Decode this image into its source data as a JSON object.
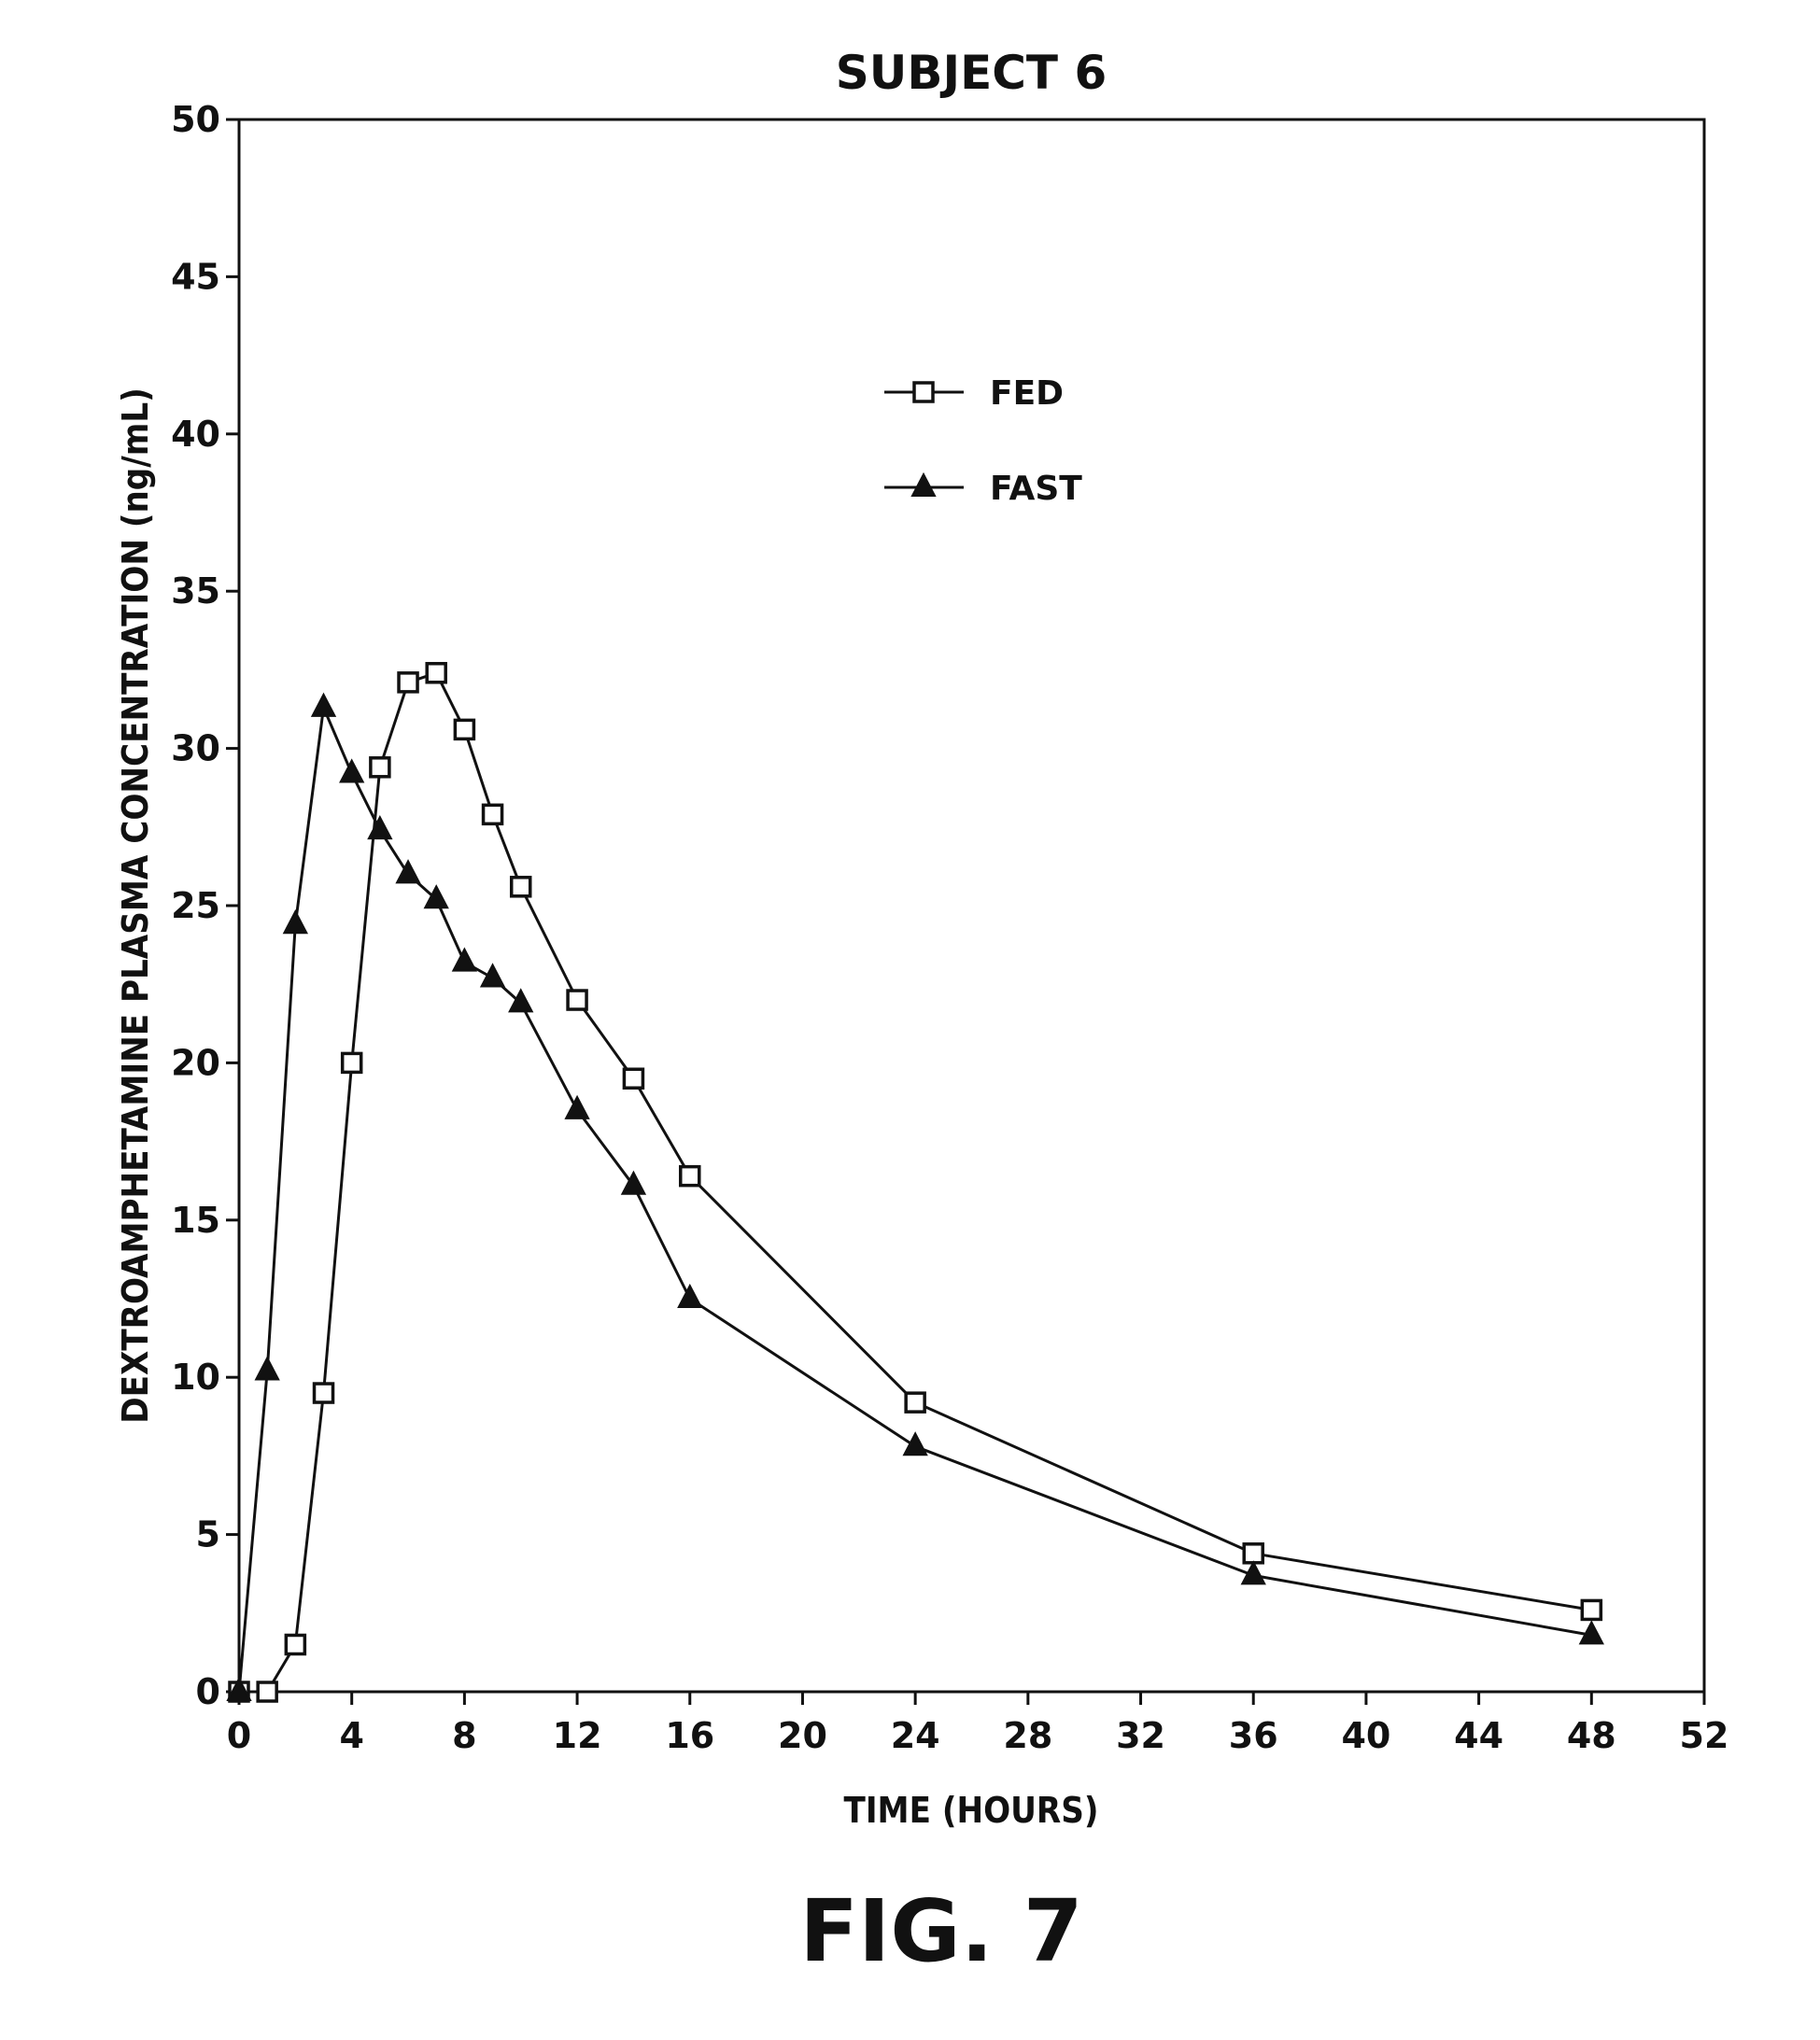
{
  "chart_data": {
    "type": "line",
    "title": "SUBJECT 6",
    "xlabel": "TIME (HOURS)",
    "ylabel": "DEXTROAMPHETAMINE PLASMA CONCENTRATION (ng/mL)",
    "xlim": [
      0,
      52
    ],
    "ylim": [
      0,
      50
    ],
    "xticks": [
      0,
      4,
      8,
      12,
      16,
      20,
      24,
      28,
      32,
      36,
      40,
      44,
      48,
      52
    ],
    "yticks": [
      0,
      5,
      10,
      15,
      20,
      25,
      30,
      35,
      40,
      45,
      50
    ],
    "grid": false,
    "legend_position": "upper-center",
    "series": [
      {
        "name": "FED",
        "marker": "open-square",
        "x": [
          0,
          1,
          2,
          3,
          4,
          5,
          6,
          7,
          8,
          9,
          10,
          12,
          14,
          16,
          24,
          36,
          48
        ],
        "y": [
          0,
          0,
          1.5,
          9.5,
          20.0,
          29.4,
          32.1,
          32.4,
          30.6,
          27.9,
          25.6,
          22.0,
          19.5,
          16.4,
          9.2,
          4.4,
          2.6
        ]
      },
      {
        "name": "FAST",
        "marker": "filled-triangle",
        "x": [
          0,
          1,
          2,
          3,
          4,
          5,
          6,
          7,
          8,
          9,
          10,
          12,
          14,
          16,
          24,
          36,
          48
        ],
        "y": [
          0,
          10.2,
          24.4,
          31.3,
          29.2,
          27.4,
          26.0,
          25.2,
          23.2,
          22.7,
          21.9,
          18.5,
          16.1,
          12.5,
          7.8,
          3.7,
          1.8
        ]
      }
    ]
  },
  "caption": "FIG. 7",
  "colors": {
    "ink": "#111111",
    "background": "#ffffff"
  }
}
